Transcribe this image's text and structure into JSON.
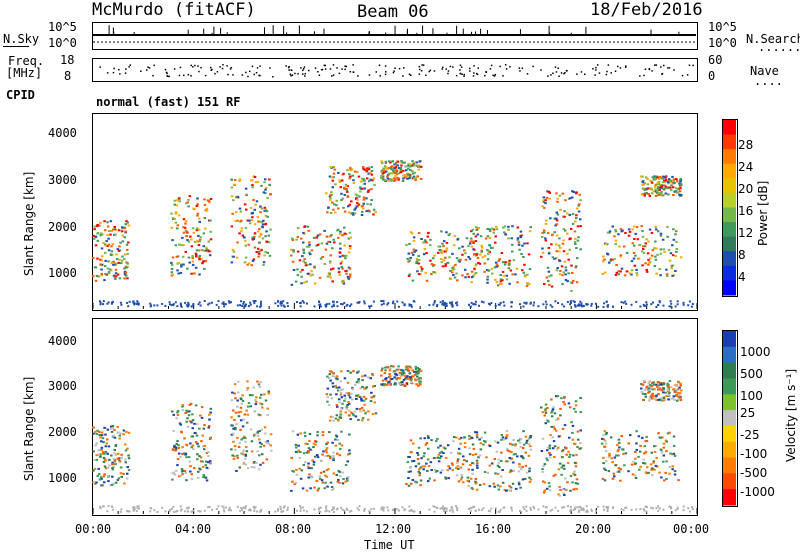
{
  "header": {
    "station": "McMurdo (fitACF)",
    "beam": "Beam 06",
    "date": "18/Feb/2016"
  },
  "strip1": {
    "left_label": "N.Sky",
    "left_ticks": [
      "10^5",
      "10^0"
    ],
    "right_ticks": [
      "10^5",
      "10^0"
    ],
    "right_label": "N.Search",
    "right_dots": "........"
  },
  "strip2": {
    "left_label_top": "Freq.",
    "left_label_bottom": "[MHz]",
    "left_ticks": [
      "18",
      "8"
    ],
    "right_ticks": [
      "60",
      "0"
    ],
    "right_label": "Nave",
    "right_dots": "...."
  },
  "strip3": {
    "left_label": "CPID",
    "text": "normal (fast) 151 RF"
  },
  "panel_power": {
    "ylabel": "Slant Range [km]",
    "yticks": [
      "4000",
      "3000",
      "2000",
      "1000"
    ],
    "cbar_label": "Power [dB]",
    "cbar_ticks": [
      "28",
      "24",
      "20",
      "16",
      "12",
      "8",
      "4"
    ],
    "cbar_colors": [
      "#ff0000",
      "#ff3a00",
      "#ff7a00",
      "#ffaa00",
      "#e8c400",
      "#b9cf2a",
      "#74b84a",
      "#3f9a5e",
      "#2f7a5a",
      "#1d4fb0",
      "#0a2be0",
      "#0000ff"
    ]
  },
  "panel_velocity": {
    "ylabel": "Slant Range [km]",
    "yticks": [
      "4000",
      "3000",
      "2000",
      "1000"
    ],
    "cbar_label": "Velocity [m s⁻¹]",
    "cbar_ticks": [
      "1000",
      "500",
      "100",
      "25",
      "-25",
      "-100",
      "-500",
      "-1000"
    ],
    "cbar_colors": [
      "#1a3fb0",
      "#2b6fc4",
      "#2e7d4f",
      "#3b9a58",
      "#7cc22b",
      "#c0c0c0",
      "#ffd100",
      "#ffaa00",
      "#ff7a00",
      "#ff4a00",
      "#ff0000"
    ]
  },
  "xaxis": {
    "label": "Time UT",
    "ticks": [
      "00:00",
      "04:00",
      "08:00",
      "12:00",
      "16:00",
      "20:00",
      "00:00"
    ]
  }
}
